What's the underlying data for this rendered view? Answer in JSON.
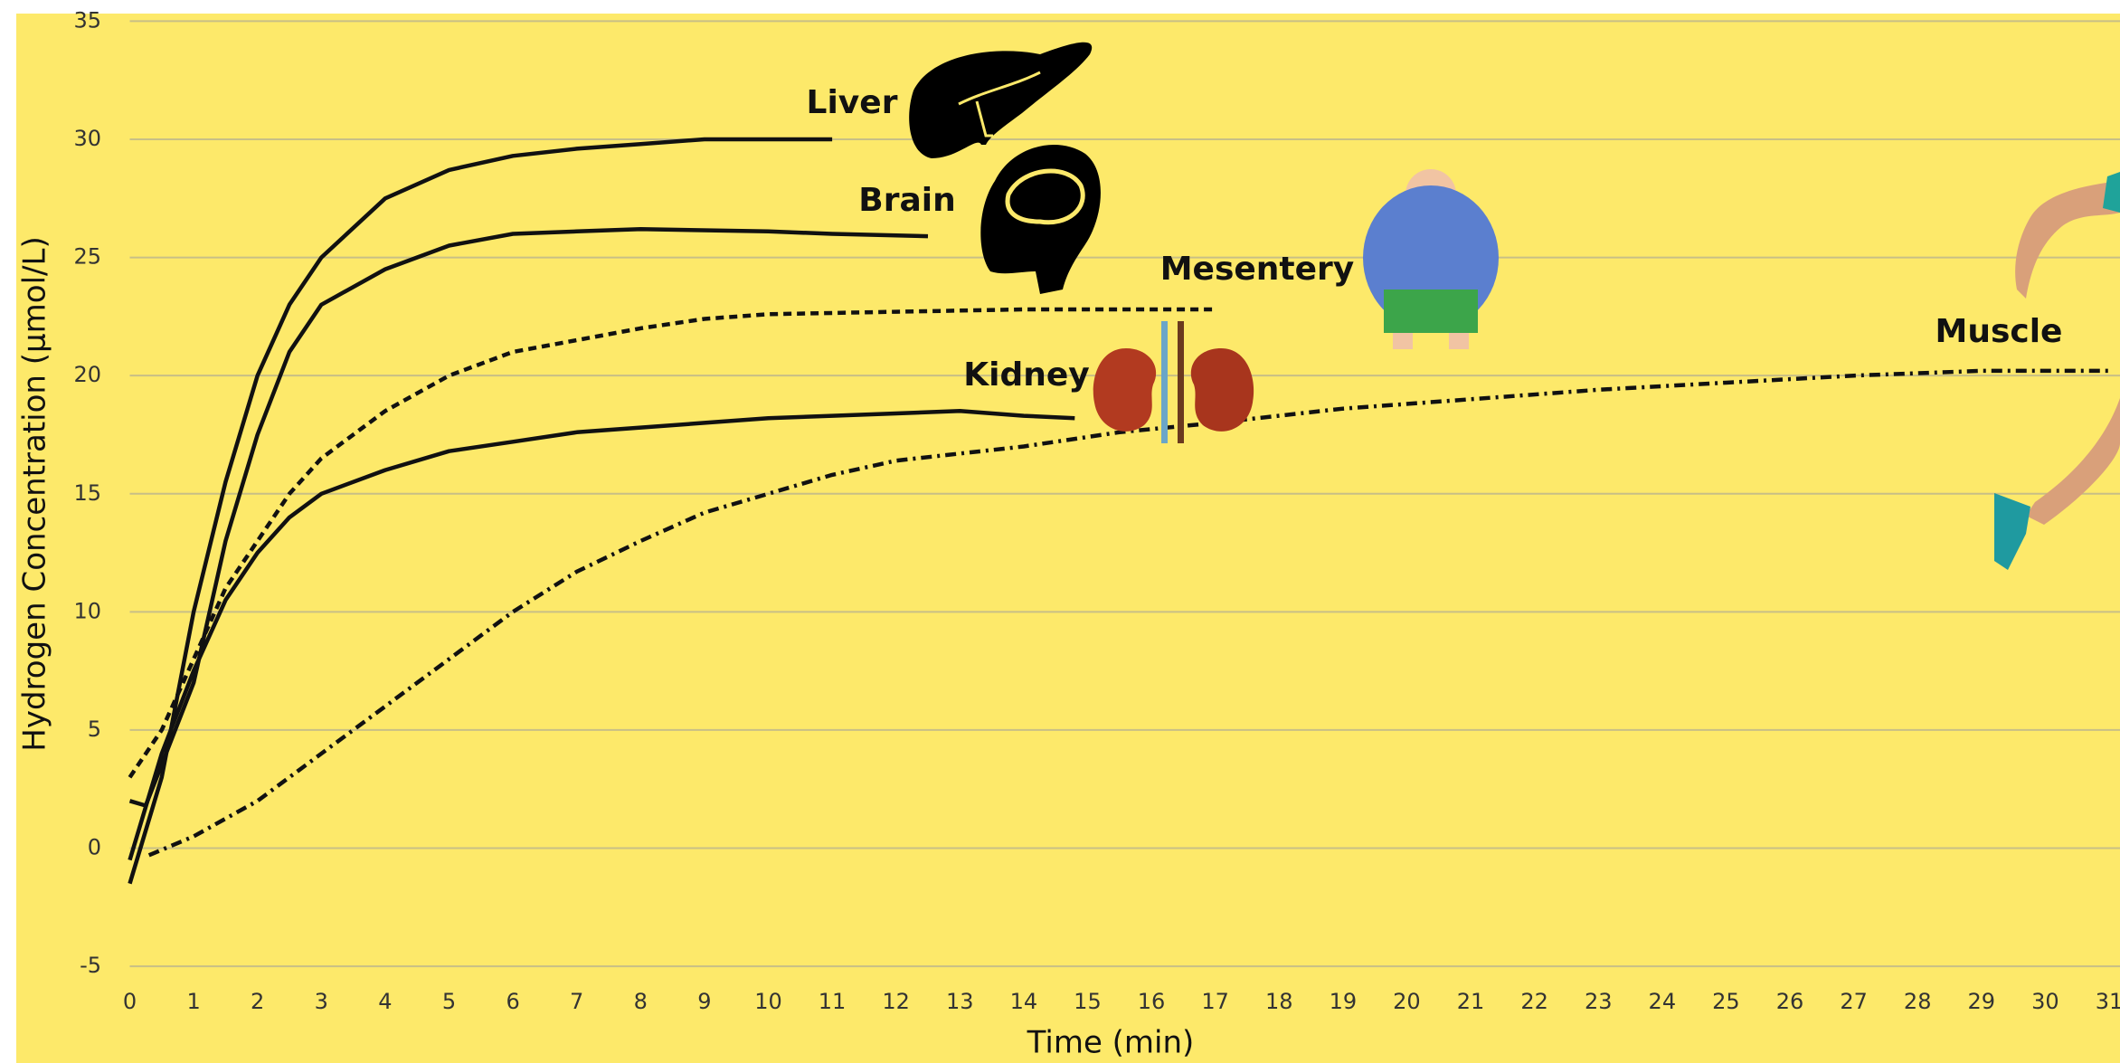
{
  "chart_data": {
    "type": "line",
    "x_label": "Time (min)",
    "y_label": "Hydrogen Concentration (μmol/L)",
    "xlim": [
      0,
      31.17
    ],
    "ylim": [
      -5,
      35
    ],
    "xticks": [
      0,
      1,
      2,
      3,
      4,
      5,
      6,
      7,
      8,
      9,
      10,
      11,
      12,
      13,
      14,
      15,
      16,
      17,
      18,
      19,
      20,
      21,
      22,
      23,
      24,
      25,
      26,
      27,
      28,
      29,
      30,
      31
    ],
    "yticks": [
      -5,
      0,
      5,
      10,
      15,
      20,
      25,
      30,
      35
    ],
    "grid": true,
    "background": "#fde96a",
    "series": [
      {
        "name": "Liver",
        "color": "#111111",
        "style": "solid",
        "x": [
          0,
          0.5,
          1,
          1.5,
          2,
          2.5,
          3,
          4,
          5,
          6,
          7,
          8,
          9,
          10,
          11
        ],
        "values": [
          -1.5,
          3,
          10,
          15.5,
          20,
          23,
          25,
          27.5,
          28.7,
          29.3,
          29.6,
          29.8,
          30,
          30,
          30
        ]
      },
      {
        "name": "Brain",
        "color": "#111111",
        "style": "solid",
        "x": [
          0,
          0.25,
          1,
          1.5,
          2,
          2.5,
          3,
          4,
          5,
          6,
          7,
          8,
          10,
          11,
          12.5
        ],
        "values": [
          2,
          1.8,
          7,
          13,
          17.5,
          21,
          23,
          24.5,
          25.5,
          26,
          26.1,
          26.2,
          26.1,
          26,
          25.9
        ]
      },
      {
        "name": "Mesentery",
        "color": "#111111",
        "style": "dashed",
        "x": [
          0,
          0.5,
          1,
          1.5,
          2,
          2.5,
          3,
          4,
          5,
          6,
          7,
          8,
          9,
          10,
          12,
          14,
          16,
          17
        ],
        "values": [
          3,
          5,
          8,
          11,
          13,
          15,
          16.5,
          18.5,
          20,
          21,
          21.5,
          22,
          22.4,
          22.6,
          22.7,
          22.8,
          22.8,
          22.8
        ]
      },
      {
        "name": "Kidney",
        "color": "#111111",
        "style": "solid",
        "x": [
          0,
          0.5,
          1,
          1.5,
          2,
          2.5,
          3,
          4,
          5,
          6,
          7,
          8,
          9,
          10,
          11,
          12,
          13,
          14,
          14.8
        ],
        "values": [
          -0.5,
          4,
          7.5,
          10.5,
          12.5,
          14,
          15,
          16,
          16.8,
          17.2,
          17.6,
          17.8,
          18,
          18.2,
          18.3,
          18.4,
          18.5,
          18.3,
          18.2
        ]
      },
      {
        "name": "Muscle",
        "color": "#111111",
        "style": "dashdot",
        "x": [
          0.3,
          1,
          2,
          3,
          4,
          5,
          6,
          7,
          8,
          9,
          10,
          11,
          12,
          14,
          15.5,
          17,
          19,
          21,
          23,
          25,
          27,
          29,
          31
        ],
        "values": [
          -0.3,
          0.5,
          2,
          4,
          6,
          8,
          10,
          11.7,
          13,
          14.2,
          15,
          15.8,
          16.4,
          17,
          17.6,
          18,
          18.6,
          19,
          19.4,
          19.7,
          20,
          20.2,
          20.2
        ]
      }
    ]
  }
}
